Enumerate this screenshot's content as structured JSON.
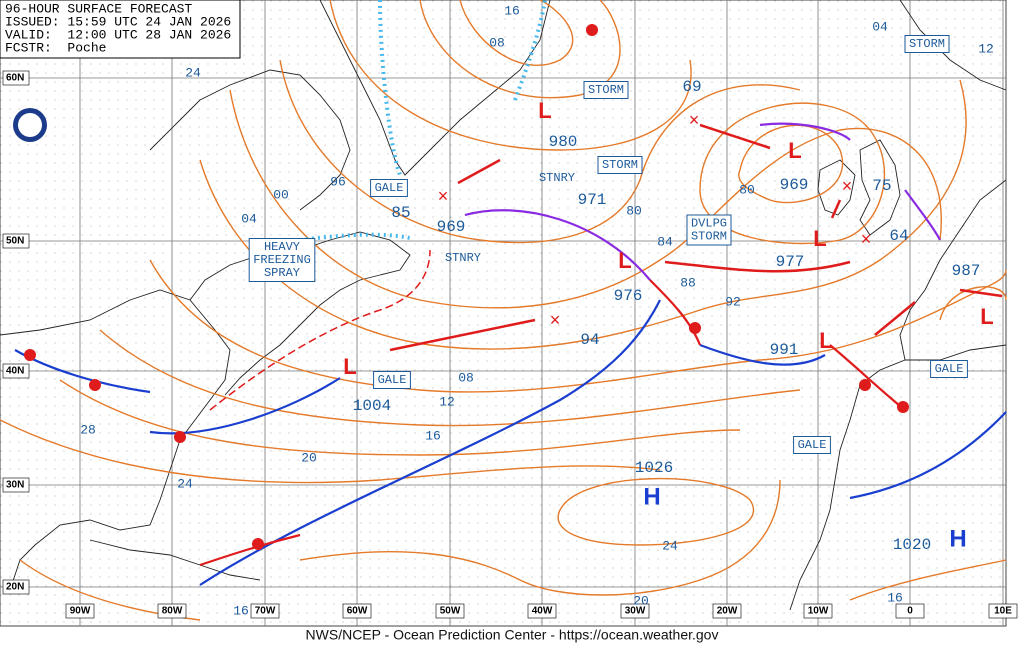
{
  "header": {
    "lines": [
      "96-HOUR SURFACE FORECAST",
      "ISSUED: 15:59 UTC 24 JAN 2026",
      "VALID:  12:00 UTC 28 JAN 2026",
      "FCSTR:  Poche"
    ]
  },
  "footer": "NWS/NCEP - Ocean Prediction Center - https://ocean.weather.gov",
  "latitudes": [
    "60N",
    "50N",
    "40N",
    "30N",
    "20N"
  ],
  "longitudes": [
    "90W",
    "80W",
    "70W",
    "60W",
    "50W",
    "40W",
    "30W",
    "20W",
    "10W",
    "0",
    "10E"
  ],
  "boxes": [
    [
      "STORM"
    ],
    [
      "STORM"
    ],
    [
      "STORM"
    ],
    [
      "GALE"
    ],
    [
      "GALE"
    ],
    [
      "GALE"
    ],
    [
      "GALE"
    ],
    [
      "HEAVY",
      "FREEZING",
      "SPRAY"
    ],
    [
      "DVLPG",
      "STORM"
    ]
  ],
  "stationary": [
    "STNRY",
    "STNRY"
  ],
  "pressures": [
    "69",
    "980",
    "971",
    "969",
    "85",
    "976",
    "94",
    "1004",
    "969",
    "75",
    "64",
    "977",
    "991",
    "987",
    "1026",
    "1020"
  ],
  "isobar_labels": [
    "24",
    "16",
    "08",
    "04",
    "12",
    "96",
    "00",
    "04",
    "80",
    "80",
    "84",
    "88",
    "92",
    "08",
    "12",
    "16",
    "20",
    "24",
    "28",
    "24",
    "20",
    "16",
    "16"
  ],
  "lows": [
    "L",
    "L",
    "L",
    "L",
    "L",
    "L",
    "L"
  ],
  "highs": [
    "H",
    "H"
  ]
}
